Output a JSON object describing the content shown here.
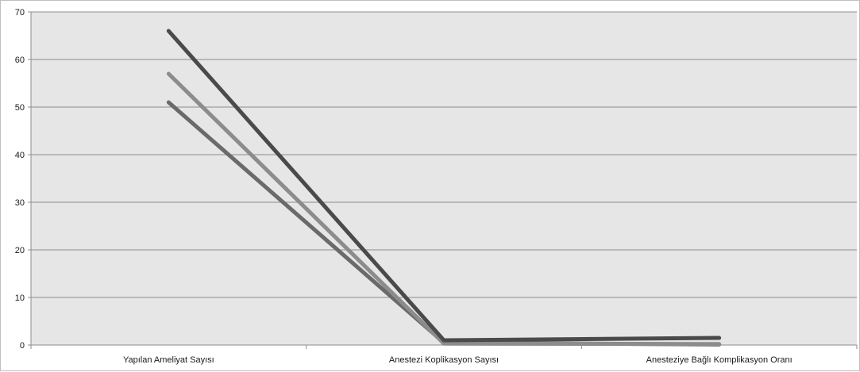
{
  "chart_data": {
    "type": "line",
    "title": "",
    "xlabel": "",
    "ylabel": "",
    "categories": [
      "Yapılan Ameliyat Sayısı",
      "Anestezi Koplikasyon Sayısı",
      "Anesteziye Bağlı Komplikasyon Oranı"
    ],
    "series": [
      {
        "values": [
          66,
          1,
          1.5
        ],
        "color": "#4a4a4a"
      },
      {
        "values": [
          57,
          0.3,
          0.2
        ],
        "color": "#8c8c8c"
      },
      {
        "values": [
          51,
          0.5,
          0.1
        ],
        "color": "#6a6a6a"
      }
    ],
    "ylim": [
      0,
      70
    ],
    "yticks": [
      "0",
      "10",
      "20",
      "30",
      "40",
      "50",
      "60",
      "70"
    ],
    "grid": true,
    "legend": "none",
    "colors": {
      "plot_background": "#e6e6e6",
      "gridline": "#8c8c8c",
      "axis": "#8c8c8c"
    }
  }
}
